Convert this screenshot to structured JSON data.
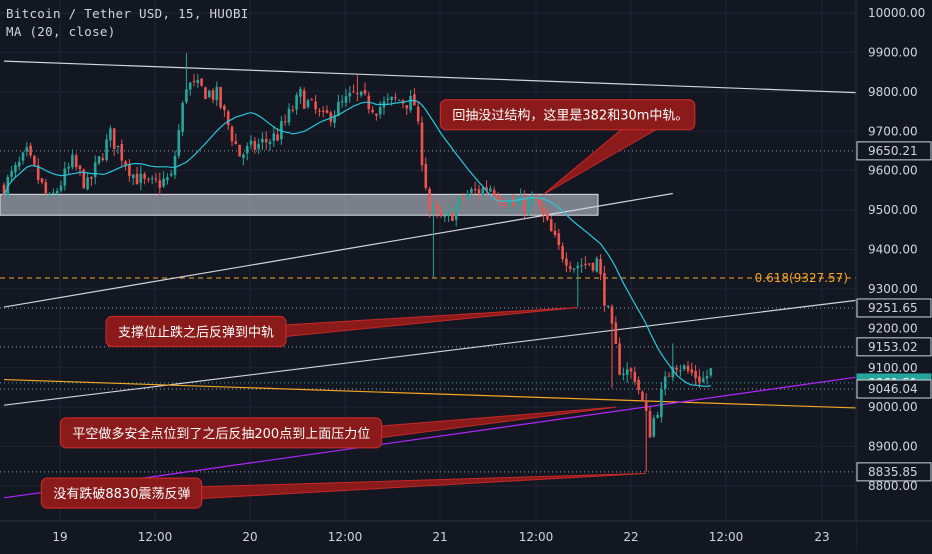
{
  "header": {
    "symbol_line": "Bitcoin / Tether USD, 15, HUOBI",
    "indicator_line": "MA (20, close)"
  },
  "colors": {
    "background": "#131722",
    "grid": "#1f2433",
    "up": "#26a69a",
    "down": "#ef5350",
    "ma": "#26c6da",
    "callout_bg": "#8b1a1a",
    "callout_border": "#c62828",
    "fib": "#f5a623",
    "diagonal": "#b026ff"
  },
  "chart_data": {
    "type": "candlestick",
    "ylim": [
      8740,
      10030
    ],
    "y_ticks": [
      8800,
      8900,
      9000,
      9100,
      9200,
      9300,
      9400,
      9500,
      9600,
      9700,
      9800,
      9900,
      10000
    ],
    "y_tick_labels": [
      "8800.00",
      "8900.00",
      "9000.00",
      "9100.00",
      "9200.00",
      "9300.00",
      "9400.00",
      "9500.00",
      "9600.00",
      "9700.00",
      "9800.00",
      "9900.00",
      "10000.00"
    ],
    "x_ticks": [
      "19",
      "12:00",
      "20",
      "12:00",
      "21",
      "12:00",
      "22",
      "12:00",
      "23"
    ],
    "price_levels": [
      {
        "value": 9650.21,
        "label": "9650.21"
      },
      {
        "value": 9251.65,
        "label": "9251.65"
      },
      {
        "value": 9153.02,
        "label": "9153.02"
      },
      {
        "value": 9061.51,
        "label": "9061.51",
        "current": true
      },
      {
        "value": 9046.04,
        "label": "9046.04"
      },
      {
        "value": 8835.85,
        "label": "8835.85"
      }
    ],
    "fib_level": {
      "value": 9327.57,
      "label": "0.618(9327.57)"
    },
    "support_zone": [
      9487,
      9540
    ],
    "anchors": [
      {
        "i": 0,
        "p": 9560
      },
      {
        "i": 6,
        "p": 9640
      },
      {
        "i": 12,
        "p": 9520
      },
      {
        "i": 18,
        "p": 9620
      },
      {
        "i": 22,
        "p": 9560
      },
      {
        "i": 28,
        "p": 9690
      },
      {
        "i": 34,
        "p": 9590
      },
      {
        "i": 38,
        "p": 9560
      },
      {
        "i": 44,
        "p": 9580
      },
      {
        "i": 48,
        "p": 9820
      },
      {
        "i": 56,
        "p": 9790
      },
      {
        "i": 62,
        "p": 9640
      },
      {
        "i": 72,
        "p": 9690
      },
      {
        "i": 78,
        "p": 9790
      },
      {
        "i": 84,
        "p": 9730
      },
      {
        "i": 92,
        "p": 9790
      },
      {
        "i": 98,
        "p": 9760
      },
      {
        "i": 104,
        "p": 9780
      },
      {
        "i": 108,
        "p": 9770
      },
      {
        "i": 112,
        "p": 9500
      },
      {
        "i": 116,
        "p": 9470
      },
      {
        "i": 122,
        "p": 9540
      },
      {
        "i": 128,
        "p": 9560
      },
      {
        "i": 134,
        "p": 9510
      },
      {
        "i": 140,
        "p": 9520
      },
      {
        "i": 146,
        "p": 9400
      },
      {
        "i": 150,
        "p": 9360
      },
      {
        "i": 156,
        "p": 9370
      },
      {
        "i": 162,
        "p": 9100
      },
      {
        "i": 166,
        "p": 9080
      },
      {
        "i": 170,
        "p": 8940
      },
      {
        "i": 173,
        "p": 9030
      },
      {
        "i": 176,
        "p": 9120
      },
      {
        "i": 180,
        "p": 9090
      },
      {
        "i": 184,
        "p": 9070
      },
      {
        "i": 186,
        "p": 9090
      }
    ],
    "spikes": [
      {
        "i": 48,
        "dir": "high",
        "p": 9898
      },
      {
        "i": 93,
        "dir": "high",
        "p": 9842
      },
      {
        "i": 113,
        "dir": "low",
        "p": 9330
      },
      {
        "i": 151,
        "dir": "low",
        "p": 9255
      },
      {
        "i": 160,
        "dir": "low",
        "p": 9050
      },
      {
        "i": 169,
        "dir": "low",
        "p": 8836
      },
      {
        "i": 176,
        "dir": "high",
        "p": 9162
      }
    ],
    "trendlines": [
      {
        "color": "#d1d4dc",
        "i1": 0,
        "p1": 9878,
        "i2": 226,
        "p2": 9798
      },
      {
        "color": "#d1d4dc",
        "i1": 0,
        "p1": 9254,
        "i2": 176,
        "p2": 9542
      },
      {
        "color": "#d1d4dc",
        "i1": 0,
        "p1": 9005,
        "i2": 226,
        "p2": 9271
      },
      {
        "color": "#f5a623",
        "i1": 0,
        "p1": 9070,
        "i2": 226,
        "p2": 8998
      },
      {
        "color": "#b026ff",
        "i1": 0,
        "p1": 8770,
        "i2": 226,
        "p2": 9076
      }
    ],
    "annotations": [
      {
        "text": "回抽没过结构，这里是382和30m中轨。",
        "box_i": 118,
        "box_p": 9742,
        "target_i": 142,
        "target_p": 9540
      },
      {
        "text": "支撑位止跌之后反弹到中轨",
        "box_i": 30,
        "box_p": 9192,
        "target_i": 151,
        "target_p": 9253
      },
      {
        "text": "平空做多安全点位到了之后反抽200点到上面压力位",
        "box_i": 18,
        "box_p": 8935,
        "target_i": 161,
        "target_p": 9000
      },
      {
        "text": "没有跌破8830震荡反弹",
        "box_i": 13,
        "box_p": 8782,
        "target_i": 169,
        "target_p": 8832
      }
    ]
  }
}
